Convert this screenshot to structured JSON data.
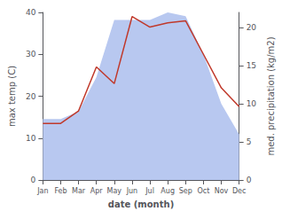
{
  "chart_data": {
    "type": "line",
    "xlabel": "date (month)",
    "ylabel": "max temp (C)",
    "y2label": "med. precipitation (kg/m2)",
    "categories": [
      "Jan",
      "Feb",
      "Mar",
      "Apr",
      "May",
      "Jun",
      "Jul",
      "Aug",
      "Sep",
      "Oct",
      "Nov",
      "Dec"
    ],
    "series": [
      {
        "type": "area",
        "axis": "y2",
        "color": "#b8c8f0",
        "values": [
          8.0,
          8.0,
          9.0,
          13.5,
          21.0,
          21.0,
          21.0,
          22.0,
          21.5,
          16.5,
          10.0,
          6.0
        ]
      },
      {
        "type": "line",
        "color": "#c0392b",
        "values": [
          13.5,
          13.5,
          16.5,
          27.0,
          23.0,
          39.0,
          36.5,
          37.5,
          38.0,
          30.0,
          22.0,
          17.5
        ]
      }
    ],
    "ylim": [
      0,
      40
    ],
    "yticks": [
      0,
      10,
      20,
      30,
      40
    ],
    "y2lim": [
      0,
      22
    ],
    "y2ticks": [
      0,
      5,
      10,
      15,
      20
    ],
    "grid": false
  }
}
